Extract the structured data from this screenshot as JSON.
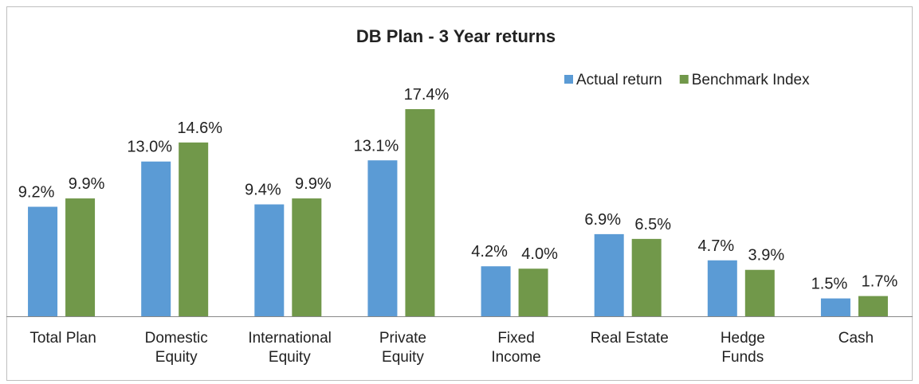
{
  "chart_data": {
    "type": "bar",
    "title": "DB Plan - 3 Year returns",
    "categories": [
      "Total Plan",
      "Domestic Equity",
      "International Equity",
      "Private Equity",
      "Fixed Income",
      "Real Estate",
      "Hedge Funds",
      "Cash"
    ],
    "series": [
      {
        "name": "Actual return",
        "color": "#5b9bd5",
        "values": [
          9.2,
          13.0,
          9.4,
          13.1,
          4.2,
          6.9,
          4.7,
          1.5
        ],
        "value_labels": [
          "9.2%",
          "13.0%",
          "9.4%",
          "13.1%",
          "4.2%",
          "6.9%",
          "4.7%",
          "1.5%"
        ]
      },
      {
        "name": "Benchmark Index",
        "color": "#71984a",
        "values": [
          9.9,
          14.6,
          9.9,
          17.4,
          4.0,
          6.5,
          3.9,
          1.7
        ],
        "value_labels": [
          "9.9%",
          "14.6%",
          "9.9%",
          "17.4%",
          "4.0%",
          "6.5%",
          "3.9%",
          "1.7%"
        ]
      }
    ],
    "legend": "top-right"
  }
}
